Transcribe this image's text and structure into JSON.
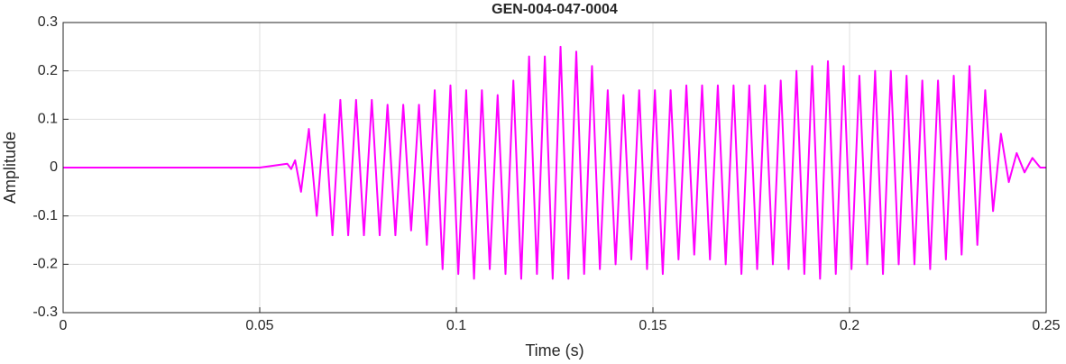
{
  "chart_data": {
    "type": "line",
    "title": "GEN-004-047-0004",
    "xlabel": "Time (s)",
    "ylabel": "Amplitude",
    "xlim": [
      0,
      0.25
    ],
    "ylim": [
      -0.3,
      0.3
    ],
    "xticks": [
      0,
      0.05,
      0.1,
      0.15,
      0.2,
      0.25
    ],
    "yticks": [
      -0.3,
      -0.2,
      -0.1,
      0,
      0.1,
      0.2,
      0.3
    ],
    "grid": true,
    "series": [
      {
        "color": "#ff00ff",
        "x": [
          0,
          0.05,
          0.057,
          0.058,
          0.059,
          0.0605,
          0.0625,
          0.0645,
          0.0665,
          0.0685,
          0.0705,
          0.0725,
          0.0745,
          0.0765,
          0.0785,
          0.0805,
          0.0825,
          0.0845,
          0.0865,
          0.0885,
          0.0905,
          0.0925,
          0.0945,
          0.0965,
          0.0985,
          0.1005,
          0.1025,
          0.1045,
          0.1065,
          0.1085,
          0.1105,
          0.1125,
          0.1145,
          0.1165,
          0.1185,
          0.1205,
          0.1225,
          0.1245,
          0.1265,
          0.1285,
          0.1305,
          0.1325,
          0.1345,
          0.1365,
          0.1385,
          0.1405,
          0.1425,
          0.1445,
          0.1465,
          0.1485,
          0.1505,
          0.1525,
          0.1545,
          0.1565,
          0.1585,
          0.1605,
          0.1625,
          0.1645,
          0.1665,
          0.1685,
          0.1705,
          0.1725,
          0.1745,
          0.1765,
          0.1785,
          0.1805,
          0.1825,
          0.1845,
          0.1865,
          0.1885,
          0.1905,
          0.1925,
          0.1945,
          0.1965,
          0.1985,
          0.2005,
          0.2025,
          0.2045,
          0.2065,
          0.2085,
          0.2105,
          0.2125,
          0.2145,
          0.2165,
          0.2185,
          0.2205,
          0.2225,
          0.2245,
          0.2265,
          0.2285,
          0.2305,
          0.2325,
          0.2345,
          0.2365,
          0.2385,
          0.2405,
          0.2425,
          0.2445,
          0.2465,
          0.2485,
          0.25
        ],
        "values": [
          0,
          0,
          0.008,
          -0.003,
          0.015,
          -0.05,
          0.08,
          -0.1,
          0.11,
          -0.14,
          0.14,
          -0.14,
          0.14,
          -0.14,
          0.14,
          -0.14,
          0.13,
          -0.14,
          0.13,
          -0.13,
          0.13,
          -0.16,
          0.16,
          -0.21,
          0.17,
          -0.22,
          0.16,
          -0.23,
          0.16,
          -0.21,
          0.15,
          -0.22,
          0.18,
          -0.23,
          0.23,
          -0.22,
          0.23,
          -0.23,
          0.25,
          -0.23,
          0.24,
          -0.22,
          0.21,
          -0.21,
          0.16,
          -0.2,
          0.15,
          -0.19,
          0.16,
          -0.21,
          0.16,
          -0.22,
          0.16,
          -0.19,
          0.17,
          -0.18,
          0.17,
          -0.19,
          0.17,
          -0.2,
          0.17,
          -0.22,
          0.17,
          -0.21,
          0.17,
          -0.2,
          0.18,
          -0.21,
          0.2,
          -0.22,
          0.21,
          -0.23,
          0.22,
          -0.22,
          0.21,
          -0.21,
          0.19,
          -0.2,
          0.2,
          -0.22,
          0.2,
          -0.2,
          0.19,
          -0.2,
          0.18,
          -0.21,
          0.18,
          -0.19,
          0.19,
          -0.18,
          0.21,
          -0.16,
          0.16,
          -0.09,
          0.07,
          -0.03,
          0.03,
          -0.01,
          0.02,
          0,
          0
        ]
      }
    ]
  }
}
